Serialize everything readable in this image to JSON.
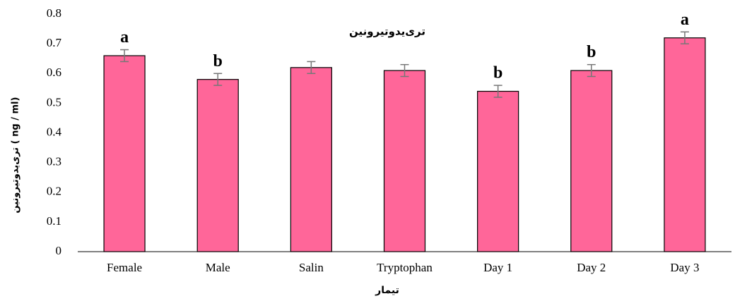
{
  "chart_data": {
    "type": "bar",
    "title": "تری‌یدوتیرونین",
    "x_label": "تیمار",
    "y_label": "تری‌یدوتیرونین ( ng / ml)",
    "categories": [
      "Female",
      "Male",
      "Salin",
      "Tryptophan",
      "Day 1",
      "Day 2",
      "Day 3"
    ],
    "values": [
      0.66,
      0.58,
      0.62,
      0.61,
      0.54,
      0.61,
      0.72
    ],
    "errors": [
      0.02,
      0.02,
      0.02,
      0.02,
      0.02,
      0.02,
      0.02
    ],
    "letters": [
      "a",
      "b",
      null,
      null,
      "b",
      "b",
      "a"
    ],
    "color": "#ff6699",
    "error_color": "#777777",
    "ylim": [
      0,
      0.8
    ],
    "yticks": [
      0,
      0.1,
      0.2,
      0.3,
      0.4,
      0.5,
      0.6,
      0.7,
      0.8
    ],
    "grid": false
  }
}
